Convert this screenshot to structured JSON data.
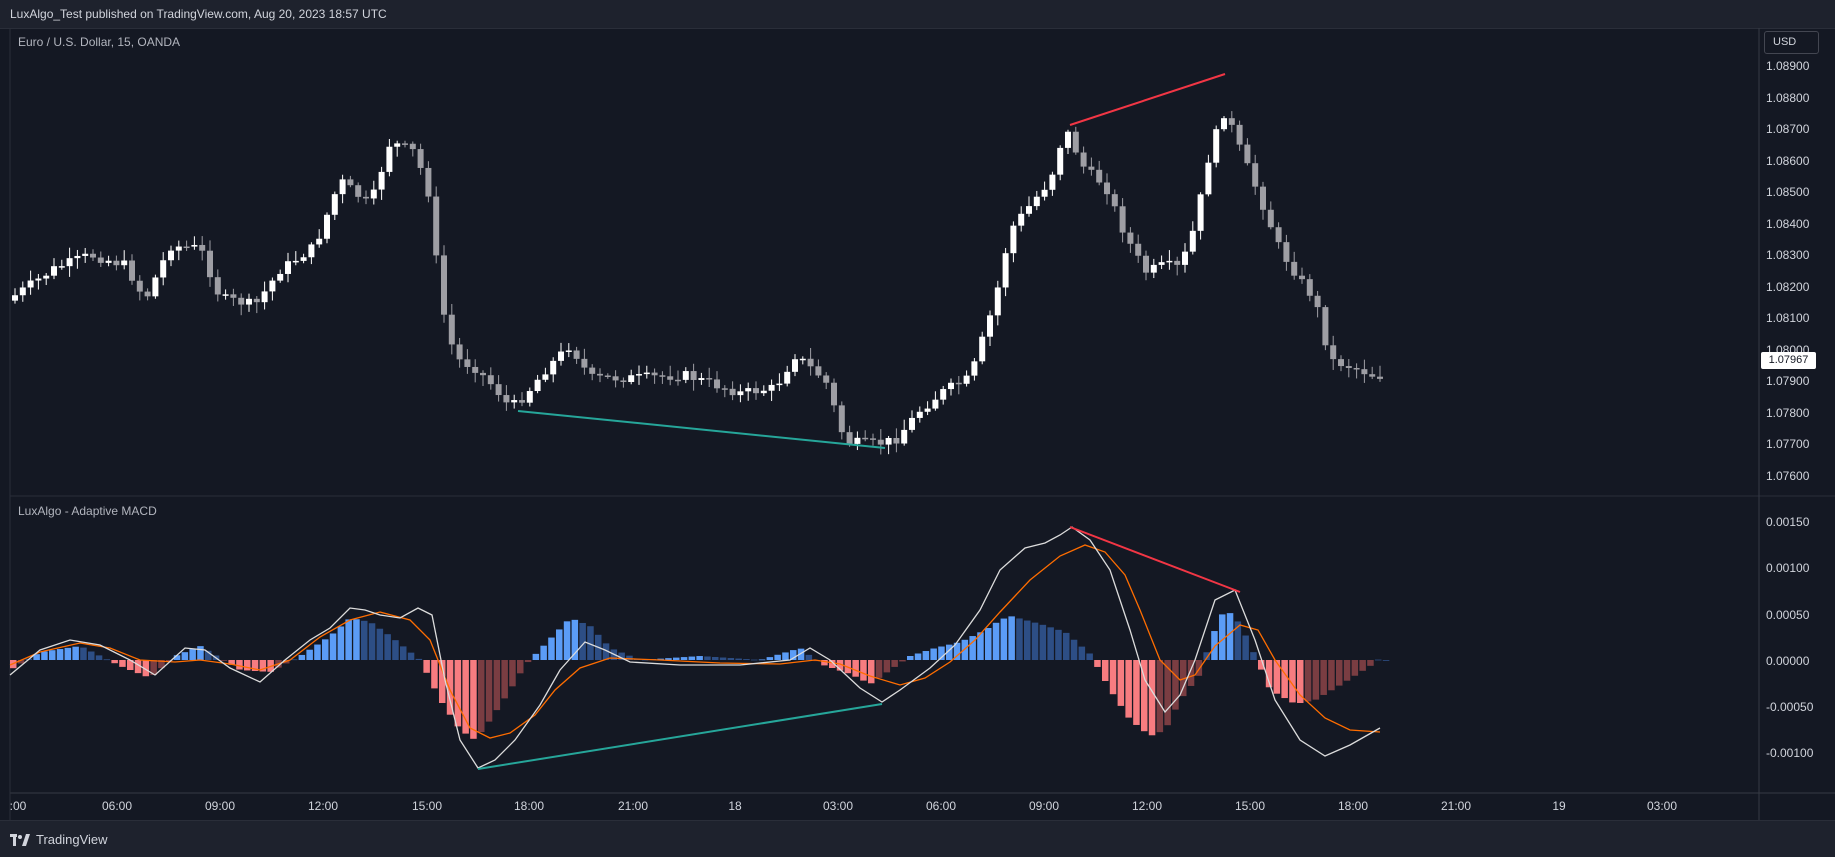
{
  "header": {
    "publisher_line": "LuxAlgo_Test published on TradingView.com, Aug 20, 2023 18:57 UTC"
  },
  "main_pane": {
    "symbol_title": "Euro / U.S. Dollar, 15, OANDA",
    "currency_button": "USD",
    "price_scale": [
      "1.08900",
      "1.08800",
      "1.08700",
      "1.08600",
      "1.08500",
      "1.08400",
      "1.08300",
      "1.08200",
      "1.08100",
      "1.08000",
      "1.07900",
      "1.07800",
      "1.07700",
      "1.07600"
    ],
    "last_price": "1.07967"
  },
  "indicator_pane": {
    "title": "LuxAlgo - Adaptive MACD",
    "scale": [
      "0.00150",
      "0.00100",
      "0.00050",
      "0.00000",
      "-0.00050",
      "-0.00100"
    ]
  },
  "time_axis": [
    ":00",
    "06:00",
    "09:00",
    "12:00",
    "15:00",
    "18:00",
    "21:00",
    "18",
    "03:00",
    "06:00",
    "09:00",
    "12:00",
    "15:00",
    "18:00",
    "21:00",
    "19",
    "03:00"
  ],
  "footer": {
    "brand": "TradingView"
  },
  "colors": {
    "background": "#141823",
    "bull_candle": "#ffffff",
    "bear_candle": "#9e9ea4",
    "bear_divergence": "#f23645",
    "bull_divergence": "#26a69a",
    "hist_pos_strong": "#5b9cf6",
    "hist_pos_weak": "#2d4e85",
    "hist_neg_strong": "#f77c80",
    "hist_neg_weak": "#7a3d42",
    "macd_line": "#dcdcdc",
    "signal_line": "#ff6d00"
  }
}
